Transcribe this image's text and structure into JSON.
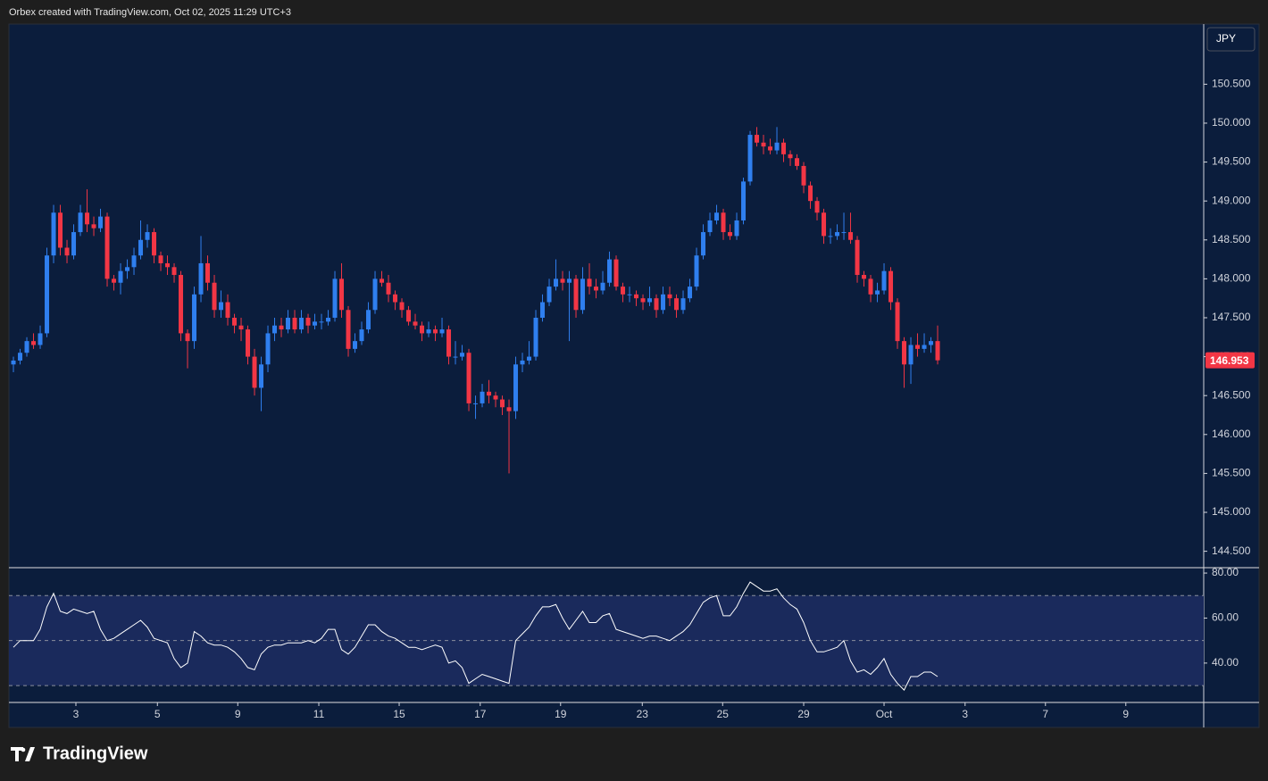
{
  "header": "Orbex created with TradingView.com, Oct 02, 2025 11:29 UTC+3",
  "brand": "TradingView",
  "chart_data": [
    {
      "type": "candlestick",
      "currency": "JPY",
      "up_color": "#2f7fef",
      "down_color": "#f23645",
      "ylim": [
        144.289,
        151.261
      ],
      "yticks": [
        {
          "value": 144.5,
          "label": "144.500"
        },
        {
          "value": 145,
          "label": "145.000"
        },
        {
          "value": 145.5,
          "label": "145.500"
        },
        {
          "value": 146,
          "label": "146.000"
        },
        {
          "value": 146.5,
          "label": "146.500"
        },
        {
          "value": 147,
          "label": "147.000"
        },
        {
          "value": 147.5,
          "label": "147.500"
        },
        {
          "value": 148,
          "label": "148.000"
        },
        {
          "value": 148.5,
          "label": "148.500"
        },
        {
          "value": 149,
          "label": "149.000"
        },
        {
          "value": 149.5,
          "label": "149.500"
        },
        {
          "value": 150,
          "label": "150.000"
        },
        {
          "value": 150.5,
          "label": "150.500"
        }
      ],
      "ohlc": [
        [
          146.9,
          147.0,
          146.8,
          146.95
        ],
        [
          146.95,
          147.1,
          146.9,
          147.05
        ],
        [
          147.05,
          147.25,
          147.0,
          147.2
        ],
        [
          147.2,
          147.3,
          147.1,
          147.15
        ],
        [
          147.15,
          147.4,
          147.1,
          147.3
        ],
        [
          147.3,
          148.4,
          147.25,
          148.3
        ],
        [
          148.3,
          148.95,
          148.2,
          148.85
        ],
        [
          148.85,
          148.95,
          148.3,
          148.4
        ],
        [
          148.4,
          148.5,
          148.2,
          148.3
        ],
        [
          148.3,
          148.7,
          148.25,
          148.6
        ],
        [
          148.6,
          148.95,
          148.55,
          148.85
        ],
        [
          148.85,
          149.15,
          148.6,
          148.7
        ],
        [
          148.7,
          148.8,
          148.55,
          148.65
        ],
        [
          148.65,
          148.9,
          148.6,
          148.8
        ],
        [
          148.8,
          148.85,
          147.9,
          148.0
        ],
        [
          148.0,
          148.05,
          147.85,
          147.95
        ],
        [
          147.95,
          148.2,
          147.8,
          148.1
        ],
        [
          148.1,
          148.25,
          148.0,
          148.15
        ],
        [
          148.15,
          148.4,
          148.05,
          148.3
        ],
        [
          148.3,
          148.75,
          148.25,
          148.5
        ],
        [
          148.5,
          148.7,
          148.4,
          148.6
        ],
        [
          148.6,
          148.65,
          148.2,
          148.3
        ],
        [
          148.3,
          148.35,
          148.1,
          148.2
        ],
        [
          148.2,
          148.3,
          148.05,
          148.15
        ],
        [
          148.15,
          148.2,
          147.95,
          148.05
        ],
        [
          148.05,
          148.1,
          147.2,
          147.3
        ],
        [
          147.3,
          147.35,
          146.85,
          147.2
        ],
        [
          147.2,
          147.9,
          147.1,
          147.8
        ],
        [
          147.8,
          148.55,
          147.7,
          148.2
        ],
        [
          148.2,
          148.3,
          147.85,
          147.95
        ],
        [
          147.95,
          148.05,
          147.5,
          147.6
        ],
        [
          147.6,
          147.85,
          147.5,
          147.7
        ],
        [
          147.7,
          147.8,
          147.4,
          147.5
        ],
        [
          147.5,
          147.55,
          147.3,
          147.4
        ],
        [
          147.4,
          147.5,
          147.2,
          147.35
        ],
        [
          147.35,
          147.4,
          146.9,
          147.0
        ],
        [
          147.0,
          147.1,
          146.5,
          146.6
        ],
        [
          146.6,
          147.0,
          146.3,
          146.9
        ],
        [
          146.9,
          147.4,
          146.8,
          147.3
        ],
        [
          147.3,
          147.5,
          147.2,
          147.4
        ],
        [
          147.4,
          147.5,
          147.25,
          147.35
        ],
        [
          147.35,
          147.6,
          147.3,
          147.5
        ],
        [
          147.5,
          147.6,
          147.3,
          147.35
        ],
        [
          147.35,
          147.6,
          147.3,
          147.5
        ],
        [
          147.5,
          147.55,
          147.3,
          147.4
        ],
        [
          147.4,
          147.55,
          147.35,
          147.45
        ],
        [
          147.45,
          147.55,
          147.35,
          147.45
        ],
        [
          147.45,
          147.6,
          147.4,
          147.5
        ],
        [
          147.5,
          148.1,
          147.45,
          148.0
        ],
        [
          148.0,
          148.2,
          147.5,
          147.6
        ],
        [
          147.6,
          147.65,
          147.0,
          147.1
        ],
        [
          147.1,
          147.3,
          147.05,
          147.2
        ],
        [
          147.2,
          147.45,
          147.15,
          147.35
        ],
        [
          147.35,
          147.7,
          147.3,
          147.6
        ],
        [
          147.6,
          148.1,
          147.55,
          148.0
        ],
        [
          148.0,
          148.1,
          147.9,
          147.95
        ],
        [
          147.95,
          148.05,
          147.7,
          147.8
        ],
        [
          147.8,
          147.85,
          147.6,
          147.7
        ],
        [
          147.7,
          147.75,
          147.5,
          147.6
        ],
        [
          147.6,
          147.65,
          147.4,
          147.45
        ],
        [
          147.45,
          147.55,
          147.35,
          147.4
        ],
        [
          147.4,
          147.45,
          147.2,
          147.3
        ],
        [
          147.3,
          147.45,
          147.25,
          147.35
        ],
        [
          147.35,
          147.4,
          147.2,
          147.3
        ],
        [
          147.3,
          147.5,
          147.25,
          147.35
        ],
        [
          147.35,
          147.4,
          146.9,
          147.0
        ],
        [
          147.0,
          147.2,
          146.9,
          147.0
        ],
        [
          147.0,
          147.15,
          146.95,
          147.05
        ],
        [
          147.05,
          147.1,
          146.3,
          146.4
        ],
        [
          146.4,
          146.5,
          146.2,
          146.4
        ],
        [
          146.4,
          146.65,
          146.35,
          146.55
        ],
        [
          146.55,
          146.7,
          146.4,
          146.5
        ],
        [
          146.5,
          146.55,
          146.35,
          146.45
        ],
        [
          146.45,
          146.5,
          146.25,
          146.35
        ],
        [
          146.35,
          146.45,
          145.5,
          146.3
        ],
        [
          146.3,
          147.0,
          146.2,
          146.9
        ],
        [
          146.9,
          147.05,
          146.8,
          146.95
        ],
        [
          146.95,
          147.2,
          146.9,
          147.0
        ],
        [
          147.0,
          147.6,
          146.95,
          147.5
        ],
        [
          147.5,
          147.8,
          147.45,
          147.7
        ],
        [
          147.7,
          148.0,
          147.65,
          147.9
        ],
        [
          147.9,
          148.25,
          147.85,
          148.0
        ],
        [
          148.0,
          148.1,
          147.85,
          147.95
        ],
        [
          147.95,
          148.1,
          147.2,
          148.0
        ],
        [
          148.0,
          148.05,
          147.5,
          147.6
        ],
        [
          147.6,
          148.15,
          147.55,
          148.0
        ],
        [
          148.0,
          148.2,
          147.8,
          147.9
        ],
        [
          147.9,
          148.0,
          147.75,
          147.85
        ],
        [
          147.85,
          148.1,
          147.8,
          147.95
        ],
        [
          147.95,
          148.35,
          147.9,
          148.25
        ],
        [
          148.25,
          148.3,
          147.85,
          147.9
        ],
        [
          147.9,
          147.95,
          147.7,
          147.8
        ],
        [
          147.8,
          147.9,
          147.7,
          147.8
        ],
        [
          147.8,
          147.85,
          147.65,
          147.75
        ],
        [
          147.75,
          147.8,
          147.6,
          147.7
        ],
        [
          147.7,
          147.9,
          147.65,
          147.75
        ],
        [
          147.75,
          147.8,
          147.5,
          147.6
        ],
        [
          147.6,
          147.9,
          147.55,
          147.8
        ],
        [
          147.8,
          147.9,
          147.65,
          147.75
        ],
        [
          147.75,
          147.8,
          147.5,
          147.6
        ],
        [
          147.6,
          147.85,
          147.55,
          147.75
        ],
        [
          147.75,
          148.0,
          147.7,
          147.9
        ],
        [
          147.9,
          148.4,
          147.85,
          148.3
        ],
        [
          148.3,
          148.7,
          148.25,
          148.6
        ],
        [
          148.6,
          148.85,
          148.55,
          148.75
        ],
        [
          148.75,
          148.95,
          148.7,
          148.85
        ],
        [
          148.85,
          148.9,
          148.5,
          148.6
        ],
        [
          148.6,
          148.7,
          148.5,
          148.55
        ],
        [
          148.55,
          148.85,
          148.5,
          148.75
        ],
        [
          148.75,
          149.3,
          148.7,
          149.25
        ],
        [
          149.25,
          149.9,
          149.2,
          149.85
        ],
        [
          149.85,
          149.95,
          149.7,
          149.75
        ],
        [
          149.75,
          149.85,
          149.6,
          149.7
        ],
        [
          149.7,
          149.8,
          149.6,
          149.65
        ],
        [
          149.65,
          149.95,
          149.6,
          149.75
        ],
        [
          149.75,
          149.8,
          149.5,
          149.6
        ],
        [
          149.6,
          149.65,
          149.45,
          149.55
        ],
        [
          149.55,
          149.6,
          149.4,
          149.45
        ],
        [
          149.45,
          149.5,
          149.1,
          149.2
        ],
        [
          149.2,
          149.25,
          148.9,
          149.0
        ],
        [
          149.0,
          149.05,
          148.75,
          148.85
        ],
        [
          148.85,
          148.9,
          148.45,
          148.55
        ],
        [
          148.55,
          148.65,
          148.45,
          148.55
        ],
        [
          148.55,
          148.7,
          148.5,
          148.6
        ],
        [
          148.6,
          148.85,
          148.5,
          148.6
        ],
        [
          148.6,
          148.85,
          148.45,
          148.5
        ],
        [
          148.5,
          148.55,
          147.95,
          148.05
        ],
        [
          148.05,
          148.1,
          147.9,
          148.0
        ],
        [
          148.0,
          148.05,
          147.7,
          147.8
        ],
        [
          147.8,
          147.95,
          147.7,
          147.85
        ],
        [
          147.85,
          148.2,
          147.8,
          148.1
        ],
        [
          148.1,
          148.15,
          147.6,
          147.7
        ],
        [
          147.7,
          147.75,
          147.1,
          147.2
        ],
        [
          147.2,
          147.25,
          146.6,
          146.9
        ],
        [
          146.9,
          147.25,
          146.65,
          147.15
        ],
        [
          147.15,
          147.3,
          147.0,
          147.1
        ],
        [
          147.1,
          147.3,
          147.05,
          147.15
        ],
        [
          147.15,
          147.25,
          147.05,
          147.2
        ],
        [
          147.2,
          147.4,
          146.9,
          146.953
        ]
      ]
    },
    {
      "type": "line",
      "color": "#ffffff",
      "band_color": "#1a2a5c",
      "levels": [
        30,
        50,
        70
      ],
      "ylim": [
        22.5,
        82.4
      ],
      "yticks": [
        {
          "value": 40,
          "label": "40.00"
        },
        {
          "value": 60,
          "label": "60.00"
        },
        {
          "value": 80,
          "label": "80.00"
        }
      ],
      "xlim": [
        -0.67,
        177.73
      ],
      "xticks": [
        {
          "value": 9.33,
          "label": "3"
        },
        {
          "value": 21.5,
          "label": "5"
        },
        {
          "value": 33.5,
          "label": "9"
        },
        {
          "value": 45.6,
          "label": "11"
        },
        {
          "value": 57.6,
          "label": "15"
        },
        {
          "value": 69.7,
          "label": "17"
        },
        {
          "value": 81.7,
          "label": "19"
        },
        {
          "value": 93.9,
          "label": "23"
        },
        {
          "value": 105.9,
          "label": "25"
        },
        {
          "value": 118,
          "label": "29"
        },
        {
          "value": 130,
          "label": "Oct"
        },
        {
          "value": 142.1,
          "label": "3"
        },
        {
          "value": 154.1,
          "label": "7"
        },
        {
          "value": 166.1,
          "label": "9"
        }
      ],
      "values": [
        47,
        50,
        50,
        50,
        55,
        65,
        71,
        63,
        62,
        64,
        63,
        62,
        63,
        55,
        50,
        51,
        53,
        55,
        57,
        59,
        56,
        51,
        50,
        49,
        42,
        38,
        40,
        54,
        52,
        49,
        48,
        48,
        47,
        45,
        42,
        38,
        37,
        44,
        47,
        48,
        48,
        49,
        49,
        49,
        50,
        49,
        51,
        55,
        55,
        46,
        44,
        47,
        52,
        57,
        57,
        54,
        52,
        51,
        49,
        47,
        47,
        46,
        47,
        48,
        47,
        40,
        41,
        38,
        31,
        33,
        35,
        34,
        33,
        32,
        31,
        50,
        53,
        56,
        61,
        65,
        65,
        66,
        60,
        55,
        59,
        63,
        58,
        58,
        61,
        62,
        55,
        54,
        53,
        52,
        51,
        52,
        52,
        51,
        50,
        52,
        54,
        57,
        62,
        67,
        69,
        70,
        61,
        61,
        65,
        71,
        76,
        74,
        72,
        72,
        73,
        69,
        66,
        64,
        58,
        50,
        45,
        45,
        46,
        47,
        50,
        41,
        36,
        37,
        35,
        38,
        42,
        35,
        31,
        28,
        34,
        34,
        36,
        36,
        34
      ]
    }
  ]
}
